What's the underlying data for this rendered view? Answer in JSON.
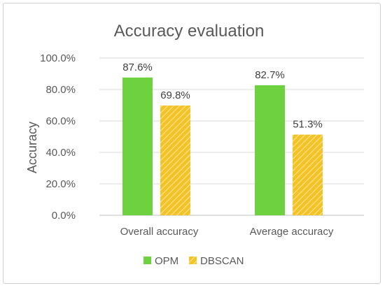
{
  "chart_data": {
    "type": "bar",
    "title": "Accuracy evaluation",
    "xlabel": "",
    "ylabel": "Accuracy",
    "categories": [
      "Overall accuracy",
      "Average accuracy"
    ],
    "series": [
      {
        "name": "OPM",
        "values": [
          87.6,
          82.7
        ],
        "labels": [
          "87.6%",
          "82.7%"
        ],
        "color": "#6ed140",
        "pattern": "solid"
      },
      {
        "name": "DBSCAN",
        "values": [
          69.8,
          51.3
        ],
        "labels": [
          "69.8%",
          "51.3%"
        ],
        "color": "#f5c223",
        "pattern": "diagonal-hatch"
      }
    ],
    "ylim": [
      0,
      100
    ],
    "yticks": [
      "0.0%",
      "20.0%",
      "40.0%",
      "60.0%",
      "80.0%",
      "100.0%"
    ],
    "grid": true,
    "legend": "bottom"
  }
}
